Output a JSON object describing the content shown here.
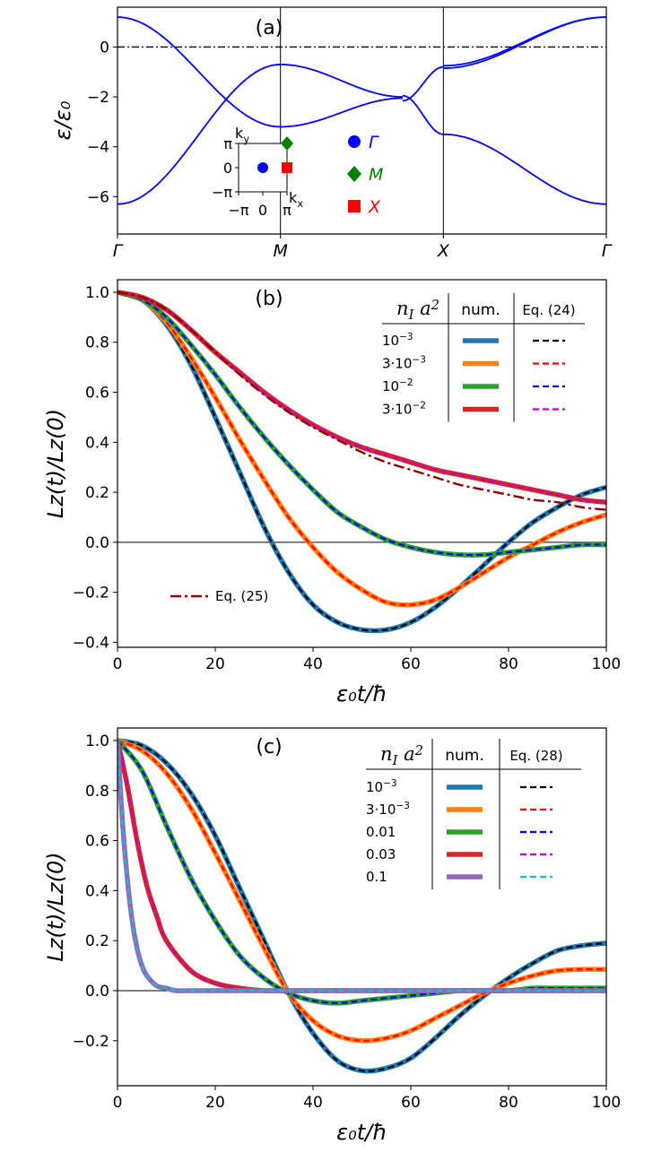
{
  "chart_data": [
    {
      "type": "line",
      "panel_label": "(a)",
      "ylabel": "ε/ε₀",
      "xlim": [
        0,
        3
      ],
      "ylim": [
        -7.5,
        1.6
      ],
      "yticks": [
        0,
        -2,
        -4,
        -6
      ],
      "ytick_labels": [
        "0",
        "−2",
        "−4",
        "−6"
      ],
      "x_tick_labels": [
        "Γ",
        "M",
        "X",
        "Γ"
      ],
      "fermi_level_line": 0,
      "band_count": 4,
      "inset": {
        "xlabel": "k_x",
        "ylabel": "k_y",
        "x_tick_labels": [
          "−π",
          "0",
          "π"
        ],
        "y_tick_labels": [
          "π",
          "0",
          "−π"
        ],
        "points": [
          {
            "name": "Γ",
            "kx": 0,
            "ky": 0,
            "color": "#0000ff",
            "marker": "circle"
          },
          {
            "name": "M",
            "kx": 3.1416,
            "ky": 3.1416,
            "color": "#008000",
            "marker": "diamond"
          },
          {
            "name": "X",
            "kx": 3.1416,
            "ky": 0,
            "color": "#ff0000",
            "marker": "square"
          }
        ]
      },
      "legend": [
        {
          "label": "Γ",
          "color": "#0000ff",
          "marker": "circle"
        },
        {
          "label": "M",
          "color": "#008000",
          "marker": "diamond"
        },
        {
          "label": "X",
          "color": "#ff0000",
          "marker": "square"
        }
      ]
    },
    {
      "type": "line",
      "panel_label": "(b)",
      "xlabel": "ε₀t/ħ",
      "ylabel": "Lz(t)/Lz(0)",
      "xlim": [
        0,
        100
      ],
      "ylim": [
        -0.42,
        1.05
      ],
      "xticks": [
        0,
        20,
        40,
        60,
        80,
        100
      ],
      "yticks": [
        1.0,
        0.8,
        0.6,
        0.4,
        0.2,
        0.0,
        -0.2,
        -0.4
      ],
      "legend_header": {
        "col1": "n_I a^2",
        "col2": "num.",
        "col3": "Eq. (24)"
      },
      "legend_rows": [
        "10^−3",
        "3·10^−3",
        "10^−2",
        "3·10^−2"
      ],
      "series": [
        {
          "name": "10^-3",
          "color": "#1f77b4",
          "eq_color": "#000000",
          "x": [
            0,
            5,
            10,
            15,
            20,
            25,
            30,
            35,
            40,
            45,
            50,
            55,
            60,
            65,
            70,
            75,
            80,
            85,
            90,
            95,
            100
          ],
          "values": [
            1.0,
            0.97,
            0.87,
            0.71,
            0.5,
            0.28,
            0.06,
            -0.12,
            -0.25,
            -0.32,
            -0.35,
            -0.35,
            -0.32,
            -0.26,
            -0.18,
            -0.09,
            0.0,
            0.08,
            0.14,
            0.19,
            0.22
          ]
        },
        {
          "name": "3·10^-3",
          "color": "#ff7f0e",
          "eq_color": "#ff0000",
          "x": [
            0,
            5,
            10,
            15,
            20,
            25,
            30,
            35,
            40,
            45,
            50,
            55,
            60,
            65,
            70,
            75,
            80,
            85,
            90,
            95,
            100
          ],
          "values": [
            1.0,
            0.97,
            0.88,
            0.74,
            0.58,
            0.41,
            0.25,
            0.1,
            -0.02,
            -0.12,
            -0.19,
            -0.24,
            -0.25,
            -0.23,
            -0.18,
            -0.12,
            -0.06,
            -0.01,
            0.04,
            0.08,
            0.11
          ]
        },
        {
          "name": "10^-2",
          "color": "#2ca02c",
          "eq_color": "#0000ff",
          "x": [
            0,
            5,
            10,
            15,
            20,
            25,
            30,
            35,
            40,
            45,
            50,
            55,
            60,
            65,
            70,
            75,
            80,
            85,
            90,
            95,
            100
          ],
          "values": [
            1.0,
            0.97,
            0.9,
            0.79,
            0.67,
            0.54,
            0.42,
            0.31,
            0.21,
            0.12,
            0.06,
            0.01,
            -0.02,
            -0.04,
            -0.05,
            -0.05,
            -0.04,
            -0.03,
            -0.02,
            -0.01,
            -0.01
          ]
        },
        {
          "name": "3·10^-2",
          "color": "#d62728",
          "eq_color": "#bf00bf",
          "x": [
            0,
            5,
            10,
            15,
            20,
            25,
            30,
            35,
            40,
            45,
            50,
            55,
            60,
            65,
            70,
            75,
            80,
            85,
            90,
            95,
            100
          ],
          "values": [
            1.0,
            0.98,
            0.93,
            0.85,
            0.76,
            0.68,
            0.6,
            0.53,
            0.47,
            0.42,
            0.38,
            0.35,
            0.32,
            0.29,
            0.27,
            0.25,
            0.23,
            0.21,
            0.19,
            0.17,
            0.16
          ]
        },
        {
          "name": "Eq. (25)",
          "color": "#8b0000",
          "dash": "dashdot",
          "x": [
            0,
            5,
            10,
            15,
            20,
            25,
            30,
            35,
            40,
            45,
            50,
            55,
            60,
            65,
            70,
            75,
            80,
            85,
            90,
            95,
            100
          ],
          "values": [
            1.0,
            0.98,
            0.93,
            0.85,
            0.76,
            0.67,
            0.59,
            0.52,
            0.46,
            0.41,
            0.36,
            0.32,
            0.29,
            0.26,
            0.23,
            0.21,
            0.19,
            0.17,
            0.16,
            0.14,
            0.13
          ]
        }
      ],
      "annotation": "Eq. (25)"
    },
    {
      "type": "line",
      "panel_label": "(c)",
      "xlabel": "ε₀t/ħ",
      "ylabel": "Lz(t)/Lz(0)",
      "xlim": [
        0,
        100
      ],
      "ylim": [
        -0.38,
        1.05
      ],
      "xticks": [
        0,
        20,
        40,
        60,
        80,
        100
      ],
      "yticks": [
        1.0,
        0.8,
        0.6,
        0.4,
        0.2,
        0.0,
        -0.2
      ],
      "legend_header": {
        "col1": "n_I a^2",
        "col2": "num.",
        "col3": "Eq. (28)"
      },
      "legend_rows": [
        "10^−3",
        "3·10^−3",
        "0.01",
        "0.03",
        "0.1"
      ],
      "series": [
        {
          "name": "10^-3",
          "color": "#1f77b4",
          "eq_color": "#000000",
          "x": [
            0,
            5,
            10,
            15,
            20,
            25,
            30,
            35,
            40,
            45,
            50,
            55,
            60,
            65,
            70,
            75,
            80,
            85,
            90,
            95,
            100
          ],
          "values": [
            1.0,
            0.98,
            0.91,
            0.79,
            0.62,
            0.41,
            0.2,
            -0.01,
            -0.17,
            -0.28,
            -0.32,
            -0.31,
            -0.27,
            -0.19,
            -0.1,
            -0.02,
            0.05,
            0.11,
            0.16,
            0.18,
            0.19
          ]
        },
        {
          "name": "3·10^-3",
          "color": "#ff7f0e",
          "eq_color": "#ff0000",
          "x": [
            0,
            5,
            10,
            15,
            20,
            25,
            30,
            35,
            40,
            45,
            50,
            55,
            60,
            65,
            70,
            75,
            80,
            85,
            90,
            95,
            100
          ],
          "values": [
            1.0,
            0.96,
            0.87,
            0.73,
            0.55,
            0.36,
            0.17,
            -0.01,
            -0.12,
            -0.18,
            -0.2,
            -0.19,
            -0.16,
            -0.11,
            -0.06,
            -0.01,
            0.03,
            0.06,
            0.08,
            0.085,
            0.085
          ]
        },
        {
          "name": "0.01",
          "color": "#2ca02c",
          "eq_color": "#0000ff",
          "x": [
            0,
            5,
            10,
            15,
            20,
            25,
            30,
            35,
            40,
            45,
            50,
            55,
            60,
            65,
            70,
            75,
            80,
            85,
            90,
            95,
            100
          ],
          "values": [
            1.0,
            0.88,
            0.66,
            0.45,
            0.28,
            0.14,
            0.05,
            -0.01,
            -0.04,
            -0.05,
            -0.04,
            -0.03,
            -0.02,
            -0.01,
            0.0,
            0.0,
            0.0,
            0.01,
            0.01,
            0.01,
            0.01
          ]
        },
        {
          "name": "0.03",
          "color": "#d62728",
          "eq_color": "#bf00bf",
          "x": [
            0,
            2,
            4,
            6,
            8,
            10,
            15,
            20,
            25,
            30,
            35,
            40,
            50,
            60,
            70,
            80,
            90,
            100
          ],
          "values": [
            1.0,
            0.82,
            0.6,
            0.42,
            0.3,
            0.2,
            0.08,
            0.03,
            0.01,
            0.0,
            0.0,
            0.0,
            0.0,
            0.0,
            0.0,
            0.0,
            0.0,
            0.0
          ]
        },
        {
          "name": "0.1",
          "color": "#9467bd",
          "eq_color": "#17becf",
          "x": [
            0,
            1,
            2,
            3,
            4,
            5,
            6,
            8,
            10,
            12,
            15,
            20,
            30,
            40,
            60,
            80,
            100
          ],
          "values": [
            1.0,
            0.68,
            0.45,
            0.28,
            0.17,
            0.1,
            0.06,
            0.02,
            0.01,
            0.0,
            0.0,
            0.0,
            0.0,
            0.0,
            0.0,
            0.0,
            0.0
          ]
        }
      ]
    }
  ]
}
